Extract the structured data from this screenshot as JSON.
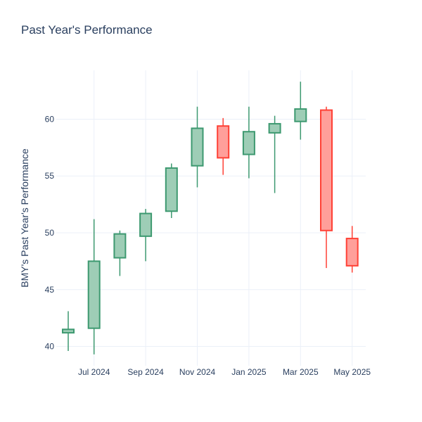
{
  "chart_data": {
    "type": "candlestick",
    "title": "Past Year's Performance",
    "xlabel": "",
    "ylabel": "BMY's Past Year's Performance",
    "ylim": [
      38.3,
      64.3
    ],
    "y_ticks": [
      40,
      45,
      50,
      55,
      60
    ],
    "x_ticks": [
      {
        "label": "Jul 2024",
        "month": 1
      },
      {
        "label": "Sep 2024",
        "month": 3
      },
      {
        "label": "Nov 2024",
        "month": 5
      },
      {
        "label": "Jan 2025",
        "month": 7
      },
      {
        "label": "Mar 2025",
        "month": 9
      },
      {
        "label": "May 2025",
        "month": 11
      }
    ],
    "grid": true,
    "legend": "none",
    "colors": {
      "increasing_line": "#3d9970",
      "increasing_fill": "#9ecdb6",
      "decreasing_line": "#ff4136",
      "decreasing_fill": "#ff9f9a",
      "grid": "#ebf0f8",
      "text": "#2a3f5f"
    },
    "candles": [
      {
        "month": 0,
        "open": 41.2,
        "high": 43.1,
        "low": 39.6,
        "close": 41.5
      },
      {
        "month": 1,
        "open": 41.6,
        "high": 51.2,
        "low": 39.3,
        "close": 47.5
      },
      {
        "month": 2,
        "open": 47.8,
        "high": 50.2,
        "low": 46.2,
        "close": 49.9
      },
      {
        "month": 3,
        "open": 49.7,
        "high": 52.1,
        "low": 47.5,
        "close": 51.7
      },
      {
        "month": 4,
        "open": 51.9,
        "high": 56.1,
        "low": 51.3,
        "close": 55.7
      },
      {
        "month": 5,
        "open": 55.9,
        "high": 61.1,
        "low": 54.0,
        "close": 59.2
      },
      {
        "month": 6,
        "open": 59.4,
        "high": 60.1,
        "low": 55.1,
        "close": 56.6
      },
      {
        "month": 7,
        "open": 56.9,
        "high": 61.1,
        "low": 54.8,
        "close": 58.9
      },
      {
        "month": 8,
        "open": 58.8,
        "high": 60.3,
        "low": 53.5,
        "close": 59.6
      },
      {
        "month": 9,
        "open": 59.8,
        "high": 63.3,
        "low": 58.2,
        "close": 60.9
      },
      {
        "month": 10,
        "open": 60.8,
        "high": 61.1,
        "low": 46.9,
        "close": 50.2
      },
      {
        "month": 11,
        "open": 49.5,
        "high": 50.6,
        "low": 46.5,
        "close": 47.1
      }
    ]
  }
}
